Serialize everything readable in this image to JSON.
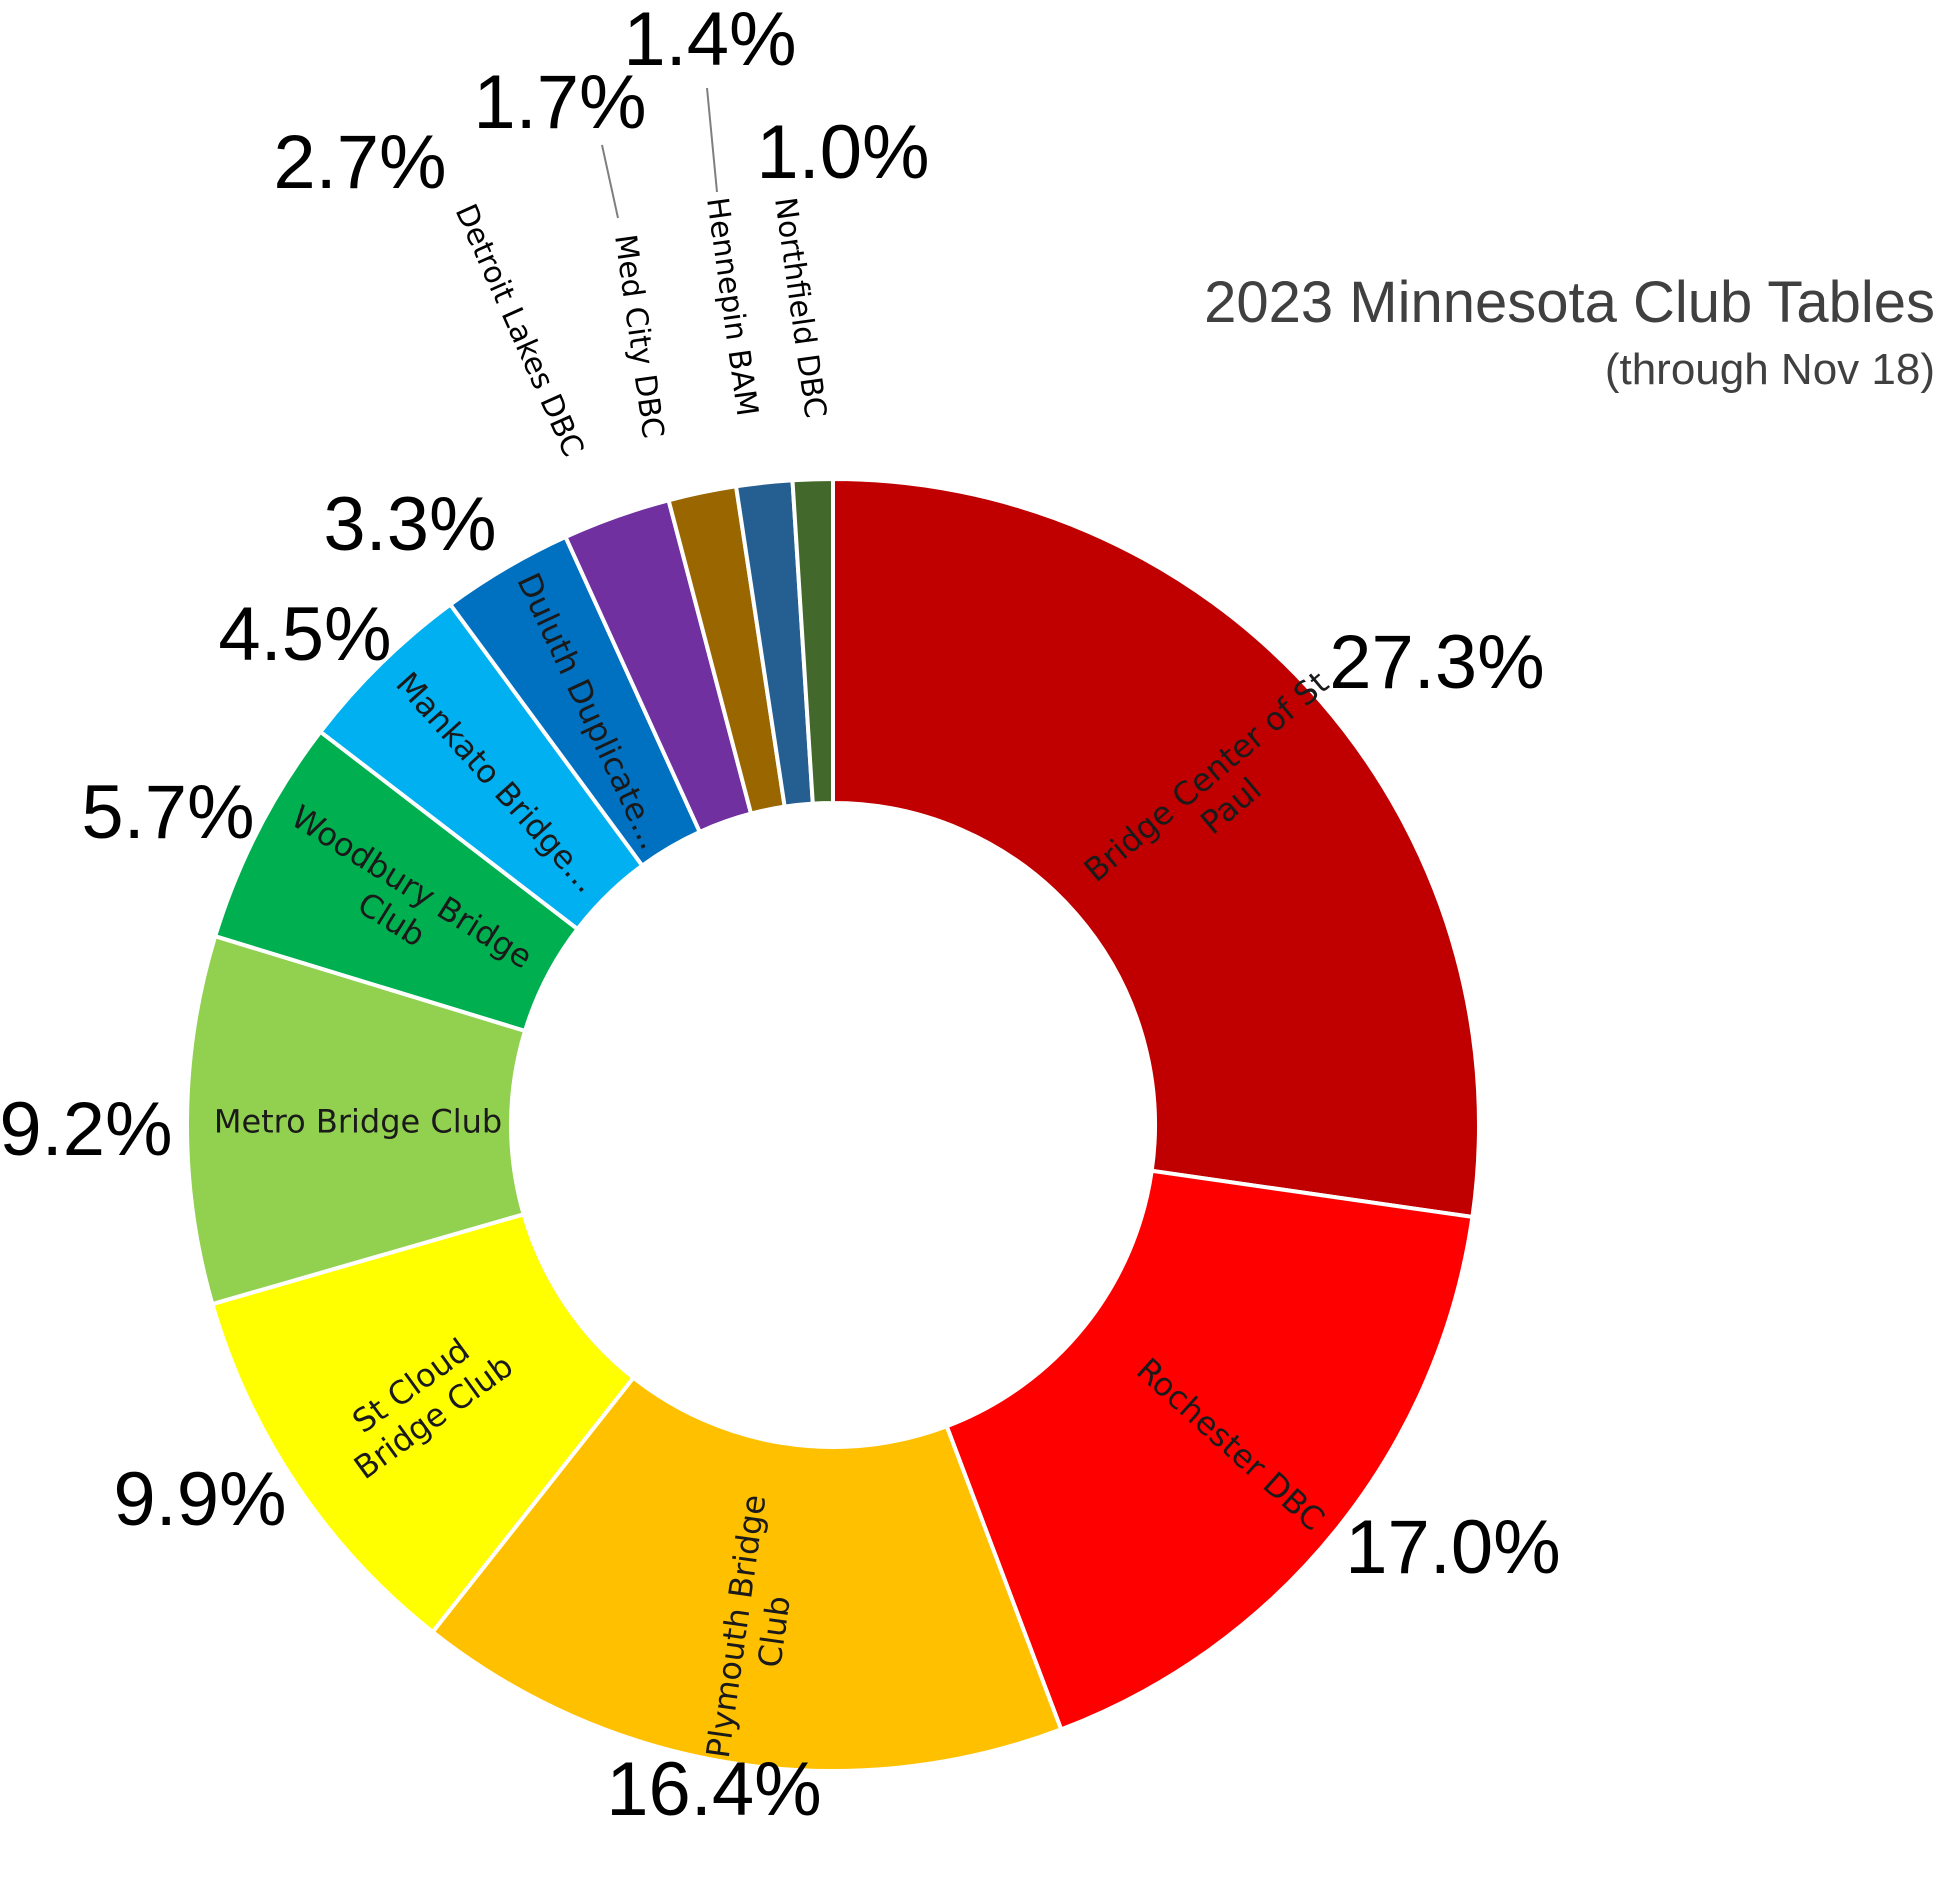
{
  "chart_data": {
    "type": "pie",
    "variant": "donut",
    "title": "2023 Minnesota Club Tables",
    "subtitle": "(through Nov 18)",
    "slices": [
      {
        "label": "Bridge Center of St Paul",
        "value": 27.3,
        "value_label": "27.3%",
        "color": "#c00000"
      },
      {
        "label": "Rochester DBC",
        "value": 17.0,
        "value_label": "17.0%",
        "color": "#ff0000"
      },
      {
        "label": "Plymouth Bridge Club",
        "value": 16.4,
        "value_label": "16.4%",
        "color": "#ffc000"
      },
      {
        "label": "St Cloud Bridge Club",
        "value": 9.9,
        "value_label": "9.9%",
        "color": "#ffff00"
      },
      {
        "label": "Metro Bridge Club",
        "value": 9.2,
        "value_label": "9.2%",
        "color": "#92d050"
      },
      {
        "label": "Woodbury Bridge Club",
        "value": 5.7,
        "value_label": "5.7%",
        "color": "#00b050"
      },
      {
        "label": "Mankato Bridge...",
        "value": 4.5,
        "value_label": "4.5%",
        "color": "#00b0f0"
      },
      {
        "label": "Duluth Duplicate...",
        "value": 3.3,
        "value_label": "3.3%",
        "color": "#0070c0"
      },
      {
        "label": "Detroit Lakes DBC",
        "value": 2.7,
        "value_label": "2.7%",
        "color": "#7030a0"
      },
      {
        "label": "Med City DBC",
        "value": 1.7,
        "value_label": "1.7%",
        "color": "#996600"
      },
      {
        "label": "Hennepin BAM",
        "value": 1.4,
        "value_label": "1.4%",
        "color": "#255e91"
      },
      {
        "label": "Northfield DBC",
        "value": 1.0,
        "value_label": "1.0%",
        "color": "#43682b"
      }
    ],
    "start_angle": "12 o'clock",
    "direction": "clockwise",
    "legend": "none"
  }
}
